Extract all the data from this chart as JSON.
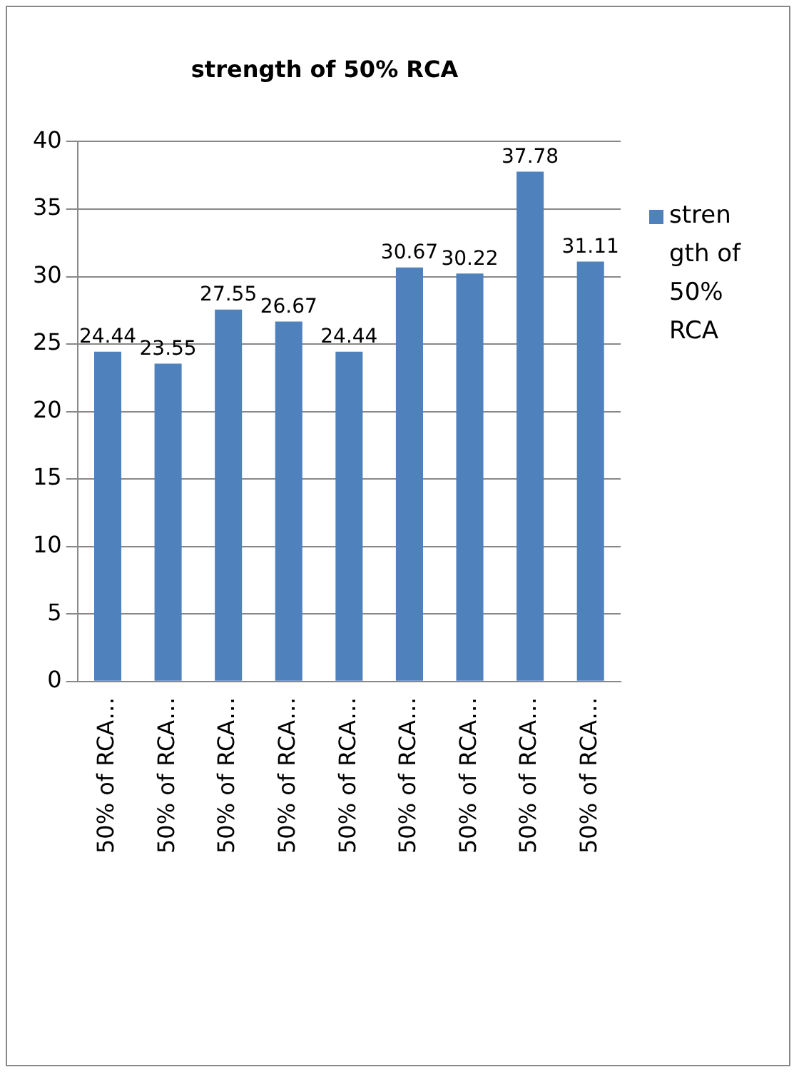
{
  "chart_data": {
    "type": "bar",
    "title": "strength of 50% RCA",
    "categories": [
      "50% of RCA…",
      "50% of RCA…",
      "50% of RCA…",
      "50% of RCA…",
      "50% of RCA…",
      "50% of RCA…",
      "50% of RCA…",
      "50% of RCA…",
      "50% of RCA…"
    ],
    "series": [
      {
        "name": "strength of 50% RCA",
        "color": "#4f81bd",
        "values": [
          24.44,
          23.55,
          27.55,
          26.67,
          24.44,
          30.67,
          30.22,
          37.78,
          31.11
        ]
      }
    ],
    "ylim": [
      0,
      40
    ],
    "yticks": [
      0,
      5,
      10,
      15,
      20,
      25,
      30,
      35,
      40
    ],
    "grid": "y",
    "legend": "right",
    "data_labels": true
  }
}
